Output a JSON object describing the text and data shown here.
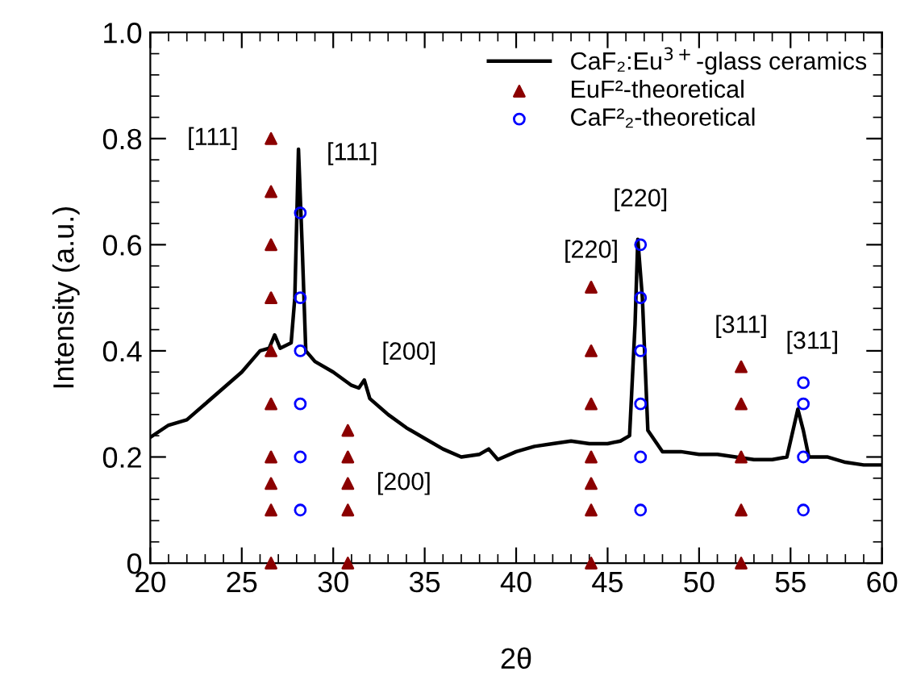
{
  "chart_data": {
    "type": "line",
    "xlabel": "2θ",
    "ylabel": "Intensity (a.u.)",
    "xlim": [
      20,
      60
    ],
    "xticks": [
      20,
      25,
      30,
      35,
      40,
      45,
      50,
      55,
      60
    ],
    "ylim": [
      0,
      1.0
    ],
    "yticks": [
      0,
      0.2,
      0.4,
      0.6,
      0.8,
      {
        "value": 1.0,
        "label": "1.0"
      }
    ],
    "grid": false,
    "legend": "top right",
    "series": [
      {
        "name": "CaF₂:Eu$^{3+}$-glass ceramics",
        "color": "#000000",
        "marker": "none",
        "line_style": "solid",
        "x": [
          20,
          21,
          22,
          23,
          24,
          25,
          26,
          26.5,
          26.8,
          27.1,
          27.7,
          27.9,
          28.1,
          28.3,
          28.5,
          29,
          30,
          31,
          31.4,
          31.7,
          32,
          33,
          34,
          35,
          36,
          37,
          38,
          38.5,
          39,
          40,
          41,
          42,
          43,
          44,
          45,
          45.7,
          46.2,
          46.5,
          46.65,
          46.9,
          47.2,
          48,
          49,
          50,
          51,
          52,
          53,
          54,
          54.8,
          55.2,
          55.4,
          55.7,
          56,
          57,
          58,
          59,
          60
        ],
        "values": [
          0.237,
          0.26,
          0.27,
          0.3,
          0.33,
          0.36,
          0.4,
          0.405,
          0.43,
          0.405,
          0.415,
          0.5,
          0.78,
          0.6,
          0.4,
          0.38,
          0.36,
          0.335,
          0.33,
          0.345,
          0.31,
          0.28,
          0.255,
          0.235,
          0.215,
          0.2,
          0.205,
          0.215,
          0.195,
          0.21,
          0.22,
          0.225,
          0.23,
          0.225,
          0.225,
          0.23,
          0.24,
          0.45,
          0.61,
          0.5,
          0.25,
          0.21,
          0.21,
          0.205,
          0.205,
          0.2,
          0.195,
          0.195,
          0.2,
          0.26,
          0.29,
          0.25,
          0.2,
          0.2,
          0.19,
          0.185,
          0.185
        ]
      },
      {
        "name": "EuF²-theoretical",
        "type": "scatter",
        "color": "#8b0000",
        "marker": "triangle",
        "x": [
          26.6,
          26.6,
          26.6,
          26.6,
          26.6,
          26.6,
          26.6,
          26.6,
          26.6,
          26.6,
          30.8,
          30.8,
          30.8,
          30.8,
          30.8,
          44.1,
          44.1,
          44.1,
          44.1,
          44.1,
          44.1,
          44.1,
          52.3,
          52.3,
          52.3,
          52.3,
          52.3
        ],
        "values": [
          0,
          0.1,
          0.15,
          0.2,
          0.3,
          0.4,
          0.5,
          0.6,
          0.7,
          0.8,
          0,
          0.1,
          0.15,
          0.2,
          0.25,
          0,
          0.1,
          0.15,
          0.2,
          0.3,
          0.4,
          0.52,
          0,
          0.1,
          0.2,
          0.3,
          0.37
        ]
      },
      {
        "name": "CaF²₂-theoretical",
        "type": "scatter",
        "color": "#0000ff",
        "marker": "circle",
        "x": [
          28.2,
          28.2,
          28.2,
          28.2,
          28.2,
          28.2,
          46.8,
          46.8,
          46.8,
          46.8,
          46.8,
          46.8,
          55.7,
          55.7,
          55.7,
          55.7
        ],
        "values": [
          0.1,
          0.2,
          0.3,
          0.4,
          0.5,
          0.66,
          0.1,
          0.2,
          0.3,
          0.4,
          0.5,
          0.6,
          0.1,
          0.2,
          0.3,
          0.34
        ]
      }
    ],
    "annotations": [
      {
        "text": "[111]",
        "x": 26.6,
        "y": 0.8
      },
      {
        "text": "[111]",
        "x": 28.1,
        "y": 0.78
      },
      {
        "text": "[200]",
        "x": 31.7,
        "y": 0.345
      },
      {
        "text": "[200]",
        "x": 30.8,
        "y": 0.15
      },
      {
        "text": "[220]",
        "x": 44.1,
        "y": 0.52
      },
      {
        "text": "[220]",
        "x": 46.8,
        "y": 0.6
      },
      {
        "text": "[311]",
        "x": 52.3,
        "y": 0.37
      },
      {
        "text": "[311]",
        "x": 55.7,
        "y": 0.34
      }
    ]
  }
}
